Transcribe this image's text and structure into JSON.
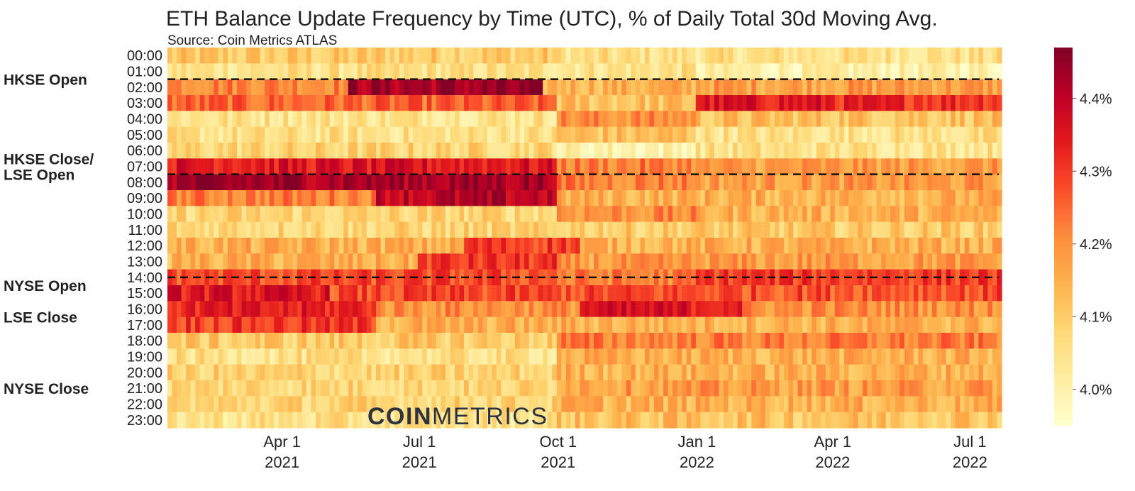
{
  "chart_data": {
    "type": "heatmap",
    "title": "ETH Balance Update Frequency by Time (UTC), % of Daily Total 30d Moving Avg.",
    "subtitle": "Source: Coin Metrics ATLAS",
    "watermark": "COINMETRICS",
    "xlabel": "",
    "ylabel": "",
    "x_range": [
      "2021-01-15",
      "2022-07-22"
    ],
    "x_ticks": [
      {
        "date": "2021-04-01",
        "label_line1": "Apr 1",
        "label_line2": "2021"
      },
      {
        "date": "2021-07-01",
        "label_line1": "Jul 1",
        "label_line2": "2021"
      },
      {
        "date": "2021-10-01",
        "label_line1": "Oct 1",
        "label_line2": "2021"
      },
      {
        "date": "2022-01-01",
        "label_line1": "Jan 1",
        "label_line2": "2022"
      },
      {
        "date": "2022-04-01",
        "label_line1": "Apr 1",
        "label_line2": "2022"
      },
      {
        "date": "2022-07-01",
        "label_line1": "Jul 1",
        "label_line2": "2022"
      }
    ],
    "y_categories": [
      "00:00",
      "01:00",
      "02:00",
      "03:00",
      "04:00",
      "05:00",
      "06:00",
      "07:00",
      "08:00",
      "09:00",
      "10:00",
      "11:00",
      "12:00",
      "13:00",
      "14:00",
      "15:00",
      "16:00",
      "17:00",
      "18:00",
      "19:00",
      "20:00",
      "21:00",
      "22:00",
      "23:00"
    ],
    "colorbar": {
      "range": [
        3.95,
        4.47
      ],
      "ticks": [
        {
          "value": 4.0,
          "label": "4.0%"
        },
        {
          "value": 4.1,
          "label": "4.1%"
        },
        {
          "value": 4.2,
          "label": "4.2%"
        },
        {
          "value": 4.3,
          "label": "4.3%"
        },
        {
          "value": 4.4,
          "label": "4.4%"
        }
      ],
      "colors": [
        "#ffffcc",
        "#ffeda0",
        "#fed976",
        "#feb24c",
        "#fd8d3c",
        "#fc4e2a",
        "#e31a1c",
        "#bd0026",
        "#800026"
      ]
    },
    "session_lines_at_utc": [
      "01:30",
      "07:30",
      "14:00"
    ],
    "session_annotations": [
      {
        "text": "HKSE Open",
        "hour": "01:30"
      },
      {
        "text": "HKSE Close/",
        "hour": "06:30"
      },
      {
        "text": "LSE Open",
        "hour": "07:30"
      },
      {
        "text": "NYSE Open",
        "hour": "14:30"
      },
      {
        "text": "LSE Close",
        "hour": "16:30"
      },
      {
        "text": "NYSE Close",
        "hour": "21:00"
      }
    ],
    "series_hourly_estimates": [
      {
        "hour": "00:00",
        "segments": [
          {
            "from": "2021-01-15",
            "to": "2021-10-01",
            "value": 4.1
          },
          {
            "from": "2021-10-01",
            "to": "2022-01-01",
            "value": 4.05
          },
          {
            "from": "2022-01-01",
            "to": "2022-07-22",
            "value": 4.05
          }
        ]
      },
      {
        "hour": "01:00",
        "segments": [
          {
            "from": "2021-01-15",
            "to": "2021-10-01",
            "value": 4.05
          },
          {
            "from": "2021-10-01",
            "to": "2022-01-01",
            "value": 4.05
          },
          {
            "from": "2022-01-01",
            "to": "2022-07-22",
            "value": 4.0
          }
        ]
      },
      {
        "hour": "02:00",
        "segments": [
          {
            "from": "2021-01-15",
            "to": "2021-05-15",
            "value": 4.22
          },
          {
            "from": "2021-05-15",
            "to": "2021-09-20",
            "value": 4.43
          },
          {
            "from": "2021-09-20",
            "to": "2022-01-01",
            "value": 4.15
          },
          {
            "from": "2022-01-01",
            "to": "2022-07-22",
            "value": 4.18
          }
        ]
      },
      {
        "hour": "03:00",
        "segments": [
          {
            "from": "2021-01-15",
            "to": "2021-10-01",
            "value": 4.25
          },
          {
            "from": "2021-10-01",
            "to": "2022-01-01",
            "value": 4.12
          },
          {
            "from": "2022-01-01",
            "to": "2022-04-01",
            "value": 4.35
          },
          {
            "from": "2022-04-01",
            "to": "2022-07-22",
            "value": 4.32
          }
        ]
      },
      {
        "hour": "04:00",
        "segments": [
          {
            "from": "2021-01-15",
            "to": "2021-10-01",
            "value": 4.05
          },
          {
            "from": "2021-10-01",
            "to": "2022-01-01",
            "value": 4.2
          },
          {
            "from": "2022-01-01",
            "to": "2022-07-22",
            "value": 4.12
          }
        ]
      },
      {
        "hour": "05:00",
        "segments": [
          {
            "from": "2021-01-15",
            "to": "2021-10-01",
            "value": 4.05
          },
          {
            "from": "2021-10-01",
            "to": "2022-01-01",
            "value": 4.12
          },
          {
            "from": "2022-01-01",
            "to": "2022-07-22",
            "value": 4.05
          }
        ]
      },
      {
        "hour": "06:00",
        "segments": [
          {
            "from": "2021-01-15",
            "to": "2021-10-01",
            "value": 4.08
          },
          {
            "from": "2021-10-01",
            "to": "2022-01-01",
            "value": 4.0
          },
          {
            "from": "2022-01-01",
            "to": "2022-07-22",
            "value": 4.05
          }
        ]
      },
      {
        "hour": "07:00",
        "segments": [
          {
            "from": "2021-01-15",
            "to": "2021-10-01",
            "value": 4.35
          },
          {
            "from": "2021-10-01",
            "to": "2022-01-01",
            "value": 4.22
          },
          {
            "from": "2022-01-01",
            "to": "2022-07-22",
            "value": 4.18
          }
        ]
      },
      {
        "hour": "08:00",
        "segments": [
          {
            "from": "2021-01-15",
            "to": "2021-10-01",
            "value": 4.43
          },
          {
            "from": "2021-10-01",
            "to": "2022-01-01",
            "value": 4.22
          },
          {
            "from": "2022-01-01",
            "to": "2022-07-22",
            "value": 4.18
          }
        ]
      },
      {
        "hour": "09:00",
        "segments": [
          {
            "from": "2021-01-15",
            "to": "2021-06-01",
            "value": 4.22
          },
          {
            "from": "2021-06-01",
            "to": "2021-10-01",
            "value": 4.4
          },
          {
            "from": "2021-10-01",
            "to": "2022-07-22",
            "value": 4.15
          }
        ]
      },
      {
        "hour": "10:00",
        "segments": [
          {
            "from": "2021-01-15",
            "to": "2021-10-01",
            "value": 4.08
          },
          {
            "from": "2021-10-01",
            "to": "2022-01-01",
            "value": 4.2
          },
          {
            "from": "2022-01-01",
            "to": "2022-07-22",
            "value": 4.15
          }
        ]
      },
      {
        "hour": "11:00",
        "segments": [
          {
            "from": "2021-01-15",
            "to": "2021-10-01",
            "value": 4.08
          },
          {
            "from": "2021-10-01",
            "to": "2022-07-22",
            "value": 4.1
          }
        ]
      },
      {
        "hour": "12:00",
        "segments": [
          {
            "from": "2021-01-15",
            "to": "2021-08-01",
            "value": 4.15
          },
          {
            "from": "2021-08-01",
            "to": "2021-10-15",
            "value": 4.3
          },
          {
            "from": "2021-10-15",
            "to": "2022-07-22",
            "value": 4.15
          }
        ]
      },
      {
        "hour": "13:00",
        "segments": [
          {
            "from": "2021-01-15",
            "to": "2021-07-01",
            "value": 4.15
          },
          {
            "from": "2021-07-01",
            "to": "2021-10-01",
            "value": 4.3
          },
          {
            "from": "2021-10-01",
            "to": "2022-07-22",
            "value": 4.18
          }
        ]
      },
      {
        "hour": "14:00",
        "segments": [
          {
            "from": "2021-01-15",
            "to": "2021-10-01",
            "value": 4.28
          },
          {
            "from": "2021-10-01",
            "to": "2022-01-01",
            "value": 4.22
          },
          {
            "from": "2022-01-01",
            "to": "2022-07-22",
            "value": 4.3
          }
        ]
      },
      {
        "hour": "15:00",
        "segments": [
          {
            "from": "2021-01-15",
            "to": "2021-05-01",
            "value": 4.35
          },
          {
            "from": "2021-05-01",
            "to": "2022-07-22",
            "value": 4.28
          }
        ]
      },
      {
        "hour": "16:00",
        "segments": [
          {
            "from": "2021-01-15",
            "to": "2021-06-01",
            "value": 4.33
          },
          {
            "from": "2021-06-01",
            "to": "2021-10-15",
            "value": 4.2
          },
          {
            "from": "2021-10-15",
            "to": "2022-02-01",
            "value": 4.35
          },
          {
            "from": "2022-02-01",
            "to": "2022-07-22",
            "value": 4.2
          }
        ]
      },
      {
        "hour": "17:00",
        "segments": [
          {
            "from": "2021-01-15",
            "to": "2021-06-01",
            "value": 4.3
          },
          {
            "from": "2021-06-01",
            "to": "2022-07-22",
            "value": 4.15
          }
        ]
      },
      {
        "hour": "18:00",
        "segments": [
          {
            "from": "2021-01-15",
            "to": "2021-10-01",
            "value": 4.1
          },
          {
            "from": "2021-10-01",
            "to": "2022-07-22",
            "value": 4.22
          }
        ]
      },
      {
        "hour": "19:00",
        "segments": [
          {
            "from": "2021-01-15",
            "to": "2021-10-01",
            "value": 4.05
          },
          {
            "from": "2021-10-01",
            "to": "2022-07-22",
            "value": 4.15
          }
        ]
      },
      {
        "hour": "20:00",
        "segments": [
          {
            "from": "2021-01-15",
            "to": "2021-10-01",
            "value": 4.08
          },
          {
            "from": "2021-10-01",
            "to": "2022-07-22",
            "value": 4.15
          }
        ]
      },
      {
        "hour": "21:00",
        "segments": [
          {
            "from": "2021-01-15",
            "to": "2021-10-01",
            "value": 4.08
          },
          {
            "from": "2021-10-01",
            "to": "2022-07-22",
            "value": 4.18
          }
        ]
      },
      {
        "hour": "22:00",
        "segments": [
          {
            "from": "2021-01-15",
            "to": "2021-10-01",
            "value": 4.08
          },
          {
            "from": "2021-10-01",
            "to": "2022-07-22",
            "value": 4.15
          }
        ]
      },
      {
        "hour": "23:00",
        "segments": [
          {
            "from": "2021-01-15",
            "to": "2021-10-01",
            "value": 4.05
          },
          {
            "from": "2021-10-01",
            "to": "2022-07-22",
            "value": 4.12
          }
        ]
      }
    ],
    "legend": "colorbar right",
    "grid": false
  }
}
